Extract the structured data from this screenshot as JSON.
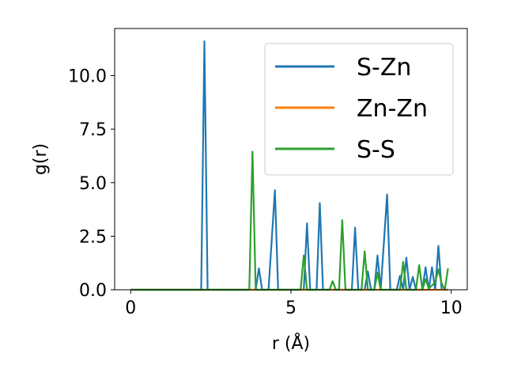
{
  "chart_data": {
    "type": "line",
    "xlabel": "r (Å)",
    "ylabel": "g(r)",
    "xlim": [
      -0.5,
      10.5
    ],
    "ylim": [
      0,
      12.2
    ],
    "xticks": [
      0,
      5,
      10
    ],
    "xtick_labels": [
      "0",
      "5",
      "10"
    ],
    "yticks": [
      0,
      2.5,
      5,
      7.5,
      10
    ],
    "ytick_labels": [
      "0.0",
      "2.5",
      "5.0",
      "7.5",
      "10.0"
    ],
    "grid": false,
    "legend_position": "top-right",
    "series": [
      {
        "name": "S-Zn",
        "color": "#1f77b4",
        "points": [
          [
            0,
            0
          ],
          [
            2.2,
            0
          ],
          [
            2.3,
            11.6
          ],
          [
            2.4,
            0
          ],
          [
            3.9,
            0
          ],
          [
            4.0,
            1.0
          ],
          [
            4.1,
            0
          ],
          [
            4.3,
            0
          ],
          [
            4.5,
            4.65
          ],
          [
            4.6,
            0
          ],
          [
            5.4,
            0
          ],
          [
            5.5,
            3.1
          ],
          [
            5.6,
            0
          ],
          [
            5.8,
            0
          ],
          [
            5.9,
            4.05
          ],
          [
            6.0,
            0
          ],
          [
            6.9,
            0
          ],
          [
            7.0,
            2.9
          ],
          [
            7.1,
            0
          ],
          [
            7.3,
            0
          ],
          [
            7.4,
            0.85
          ],
          [
            7.5,
            0
          ],
          [
            7.6,
            0
          ],
          [
            7.7,
            1.6
          ],
          [
            7.8,
            0
          ],
          [
            8.0,
            4.45
          ],
          [
            8.1,
            0
          ],
          [
            8.3,
            0
          ],
          [
            8.4,
            0.65
          ],
          [
            8.5,
            0
          ],
          [
            8.6,
            1.5
          ],
          [
            8.7,
            0
          ],
          [
            8.8,
            0.6
          ],
          [
            8.9,
            0
          ],
          [
            9.1,
            0
          ],
          [
            9.2,
            1.05
          ],
          [
            9.3,
            0
          ],
          [
            9.4,
            1.05
          ],
          [
            9.5,
            0
          ],
          [
            9.6,
            2.05
          ],
          [
            9.7,
            0
          ],
          [
            9.9,
            0
          ]
        ]
      },
      {
        "name": "Zn-Zn",
        "color": "#ff7f0e",
        "points": [
          [
            0,
            0
          ],
          [
            2.2,
            0
          ],
          [
            2.3,
            0
          ],
          [
            3.7,
            0
          ],
          [
            3.8,
            0
          ],
          [
            5.4,
            0
          ],
          [
            6.5,
            0
          ],
          [
            9.0,
            0
          ],
          [
            9.9,
            0
          ]
        ]
      },
      {
        "name": "S-S",
        "color": "#2ca02c",
        "points": [
          [
            0,
            0
          ],
          [
            3.7,
            0
          ],
          [
            3.8,
            6.45
          ],
          [
            3.9,
            0
          ],
          [
            5.3,
            0
          ],
          [
            5.4,
            1.6
          ],
          [
            5.5,
            0
          ],
          [
            6.2,
            0
          ],
          [
            6.3,
            0.4
          ],
          [
            6.4,
            0
          ],
          [
            6.5,
            0
          ],
          [
            6.6,
            3.25
          ],
          [
            6.7,
            0
          ],
          [
            7.2,
            0
          ],
          [
            7.3,
            1.8
          ],
          [
            7.4,
            0
          ],
          [
            7.6,
            0
          ],
          [
            7.7,
            0.8
          ],
          [
            7.8,
            0
          ],
          [
            8.4,
            0
          ],
          [
            8.5,
            1.3
          ],
          [
            8.6,
            0
          ],
          [
            8.9,
            0
          ],
          [
            9.0,
            1.15
          ],
          [
            9.1,
            0
          ],
          [
            9.2,
            0.5
          ],
          [
            9.3,
            0.05
          ],
          [
            9.5,
            0.35
          ],
          [
            9.6,
            0.95
          ],
          [
            9.7,
            0.3
          ],
          [
            9.8,
            0
          ],
          [
            9.9,
            1.0
          ]
        ]
      }
    ]
  }
}
